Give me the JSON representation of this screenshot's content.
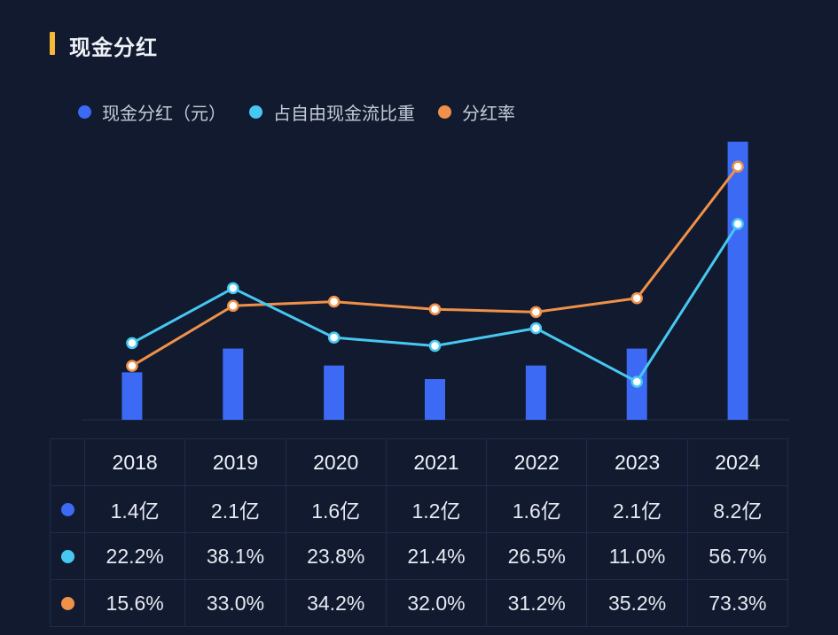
{
  "title": "现金分红",
  "colors": {
    "background": "#111a2e",
    "title_accent": "#f5b93a",
    "bar": "#3d6af5",
    "ratio_line": "#47c8f2",
    "payout_line": "#f0914a",
    "grid": "#1f2c4c"
  },
  "legend": {
    "cash": "现金分红（元）",
    "fcf_ratio": "占自由现金流比重",
    "payout": "分红率"
  },
  "chart_data": {
    "type": "bar+line",
    "title": "现金分红",
    "categories": [
      "2018",
      "2019",
      "2020",
      "2021",
      "2022",
      "2023",
      "2024"
    ],
    "series": [
      {
        "name": "现金分红（元）",
        "kind": "bar",
        "values": [
          1.4,
          2.1,
          1.6,
          1.2,
          1.6,
          2.1,
          8.2
        ],
        "labels": [
          "1.4亿",
          "2.1亿",
          "1.6亿",
          "1.2亿",
          "1.6亿",
          "2.1亿",
          "8.2亿"
        ],
        "unit": "亿"
      },
      {
        "name": "占自由现金流比重",
        "kind": "line",
        "values": [
          22.2,
          38.1,
          23.8,
          21.4,
          26.5,
          11.0,
          56.7
        ],
        "labels": [
          "22.2%",
          "38.1%",
          "23.8%",
          "21.4%",
          "26.5%",
          "11.0%",
          "56.7%"
        ],
        "unit": "%"
      },
      {
        "name": "分红率",
        "kind": "line",
        "values": [
          15.6,
          33.0,
          34.2,
          32.0,
          31.2,
          35.2,
          73.3
        ],
        "labels": [
          "15.6%",
          "33.0%",
          "34.2%",
          "32.0%",
          "31.2%",
          "35.2%",
          "73.3%"
        ],
        "unit": "%"
      }
    ],
    "xlabel": "",
    "ylabel": "",
    "grid": false,
    "legend_position": "top-left"
  }
}
